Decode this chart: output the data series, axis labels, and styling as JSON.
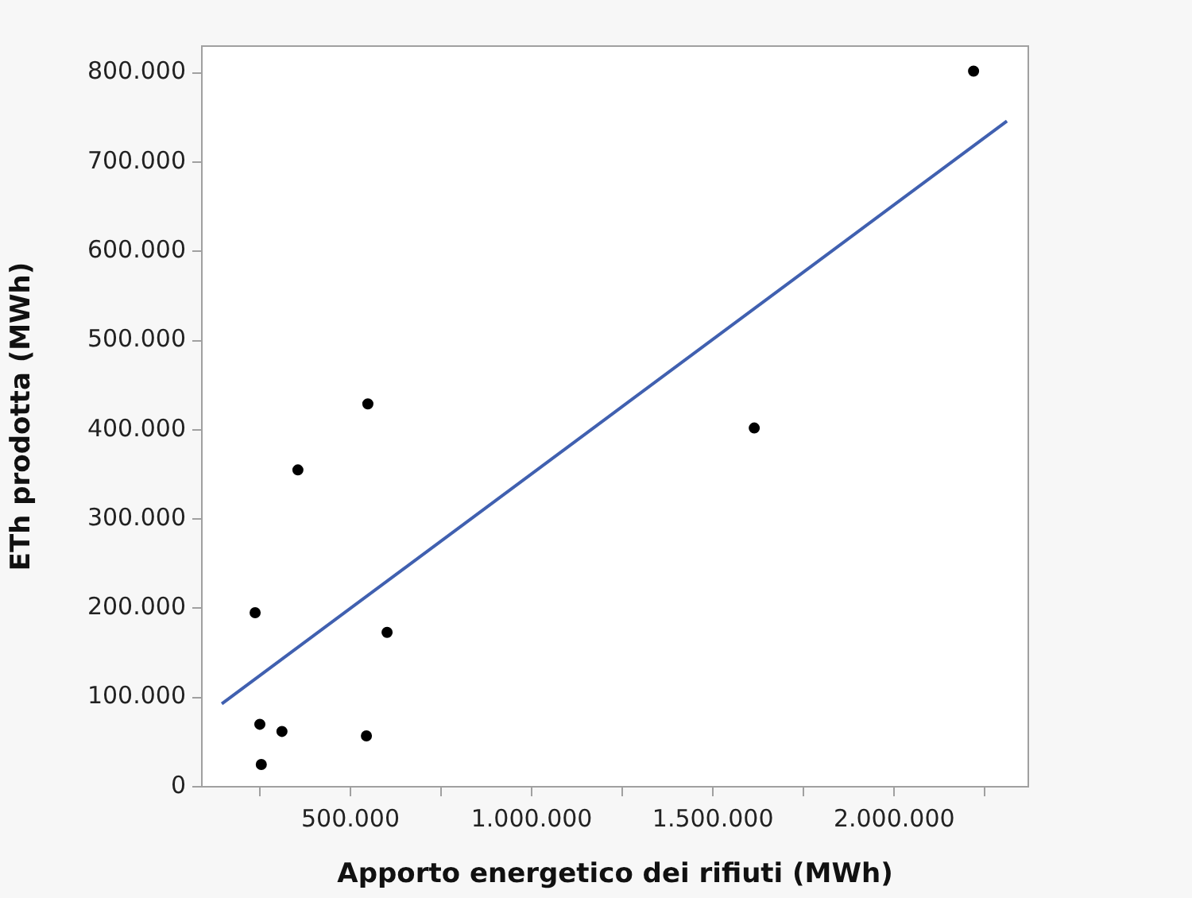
{
  "chart_data": {
    "type": "scatter",
    "xlabel": "Apporto energetico dei rifiuti (MWh)",
    "ylabel": "ETh prodotta (MWh)",
    "grid": false,
    "legend": false,
    "marker": "circle",
    "xlim": [
      90000,
      2370000
    ],
    "xticks": [
      {
        "value": 250000,
        "label": null
      },
      {
        "value": 500000,
        "label": "500.000"
      },
      {
        "value": 750000,
        "label": null
      },
      {
        "value": 1000000,
        "label": "1.000.000"
      },
      {
        "value": 1250000,
        "label": null
      },
      {
        "value": 1500000,
        "label": "1.500.000"
      },
      {
        "value": 1750000,
        "label": null
      },
      {
        "value": 2000000,
        "label": "2.000.000"
      },
      {
        "value": 2250000,
        "label": null
      }
    ],
    "ylim": [
      0,
      830000
    ],
    "yticks": [
      0,
      {
        "value": 100000,
        "label": "100.000"
      },
      {
        "value": 200000,
        "label": "200.000"
      },
      {
        "value": 300000,
        "label": "300.000"
      },
      {
        "value": 400000,
        "label": "400.000"
      },
      {
        "value": 500000,
        "label": "500.000"
      },
      {
        "value": 600000,
        "label": "600.000"
      },
      {
        "value": 700000,
        "label": "700.000"
      },
      {
        "value": 800000,
        "label": "800.000"
      }
    ],
    "series": [
      {
        "type": "scatter",
        "color": "#000000",
        "x": [
          237000,
          250000,
          254000,
          311000,
          544000,
          601000,
          355000,
          548000,
          1614000,
          2219000
        ],
        "values": [
          195000,
          70000,
          25000,
          62000,
          57000,
          173000,
          355000,
          429000,
          402000,
          802000
        ]
      },
      {
        "type": "line",
        "color": "#4060b0",
        "line_style": "solid",
        "marker": "none",
        "x": [
          145000,
          2311000
        ],
        "values": [
          93000,
          746000
        ]
      }
    ]
  }
}
